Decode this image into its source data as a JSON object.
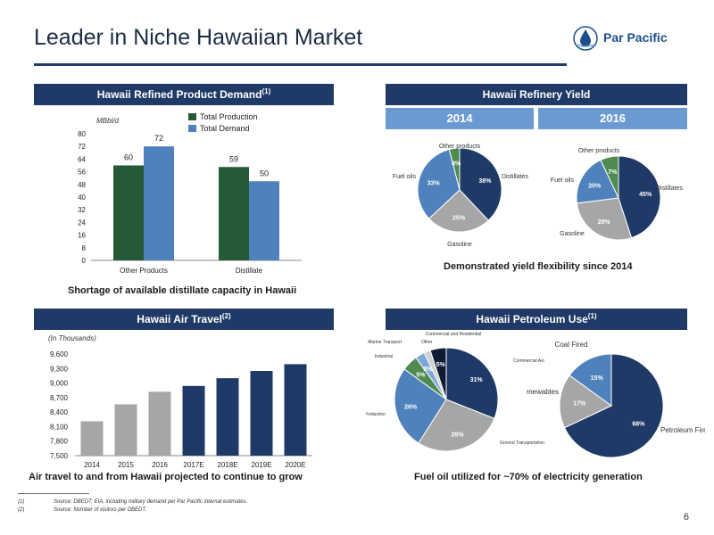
{
  "header": {
    "title": "Leader in Niche Hawaiian Market",
    "brand": "Par Pacific"
  },
  "colors": {
    "navy": "#1f3a66",
    "light_blue": "#6b9ad3",
    "dark_green": "#255a36",
    "mid_blue": "#4f81bd",
    "gray": "#a6a6a6",
    "green": "#4f8a4f"
  },
  "sections": {
    "demand_title": "Hawaii Refined Product Demand",
    "demand_sup": "(1)",
    "yield_title": "Hawaii Refinery Yield",
    "air_title": "Hawaii Air Travel",
    "air_sup": "(2)",
    "petro_title": "Hawaii Petroleum Use",
    "petro_sup": "(1)"
  },
  "yield_tabs": [
    "2014",
    "2016"
  ],
  "captions": {
    "demand": "Shortage of available distillate capacity in Hawaii",
    "yield": "Demonstrated yield flexibility since 2014",
    "air": "Air travel to and from Hawaii projected to continue to grow",
    "petro": "Fuel oil utilized for ~70% of electricity generation"
  },
  "footnotes": [
    {
      "num": "(1)",
      "text": "Source: DBEDT; EIA, including military demand per Par Pacific internal estimates."
    },
    {
      "num": "(2)",
      "text": "Source: Number of visitors per DBEDT."
    }
  ],
  "page_number": "6",
  "chart_data": [
    {
      "type": "bar",
      "unit_label": "MBbl/d",
      "categories": [
        "Other Products",
        "Distillate"
      ],
      "series": [
        {
          "name": "Total Production",
          "values": [
            60,
            59
          ],
          "color": "#255a36"
        },
        {
          "name": "Total Demand",
          "values": [
            72,
            50
          ],
          "color": "#4f81bd"
        }
      ],
      "data_labels": [
        [
          "60",
          "59"
        ],
        [
          "72",
          "50"
        ]
      ],
      "ylim": [
        0,
        80
      ],
      "yticks": [
        "0",
        "8",
        "16",
        "24",
        "32",
        "40",
        "48",
        "56",
        "64",
        "72",
        "80"
      ],
      "legend": "top-right"
    },
    {
      "type": "pie",
      "year": "2014",
      "slices": [
        {
          "label": "Distillates",
          "value": 38,
          "pct": "38%",
          "color": "#1f3a66"
        },
        {
          "label": "Gasoline",
          "value": 25,
          "pct": "25%",
          "color": "#a6a6a6"
        },
        {
          "label": "Fuel oils",
          "value": 33,
          "pct": "33%",
          "color": "#4f81bd"
        },
        {
          "label": "Other products",
          "value": 4,
          "pct": "4%",
          "color": "#4f8a4f"
        }
      ]
    },
    {
      "type": "pie",
      "year": "2016",
      "slices": [
        {
          "label": "Distillates",
          "value": 45,
          "pct": "45%",
          "color": "#1f3a66"
        },
        {
          "label": "Gasoline",
          "value": 28,
          "pct": "28%",
          "color": "#a6a6a6"
        },
        {
          "label": "Fuel oils",
          "value": 20,
          "pct": "20%",
          "color": "#4f81bd"
        },
        {
          "label": "Other products",
          "value": 7,
          "pct": "7%",
          "color": "#4f8a4f"
        }
      ]
    },
    {
      "type": "bar",
      "unit_label": "(In Thousands)",
      "categories": [
        "2014",
        "2015",
        "2016",
        "2017E",
        "2018E",
        "2019E",
        "2020E"
      ],
      "values": [
        8210,
        8560,
        8820,
        8940,
        9100,
        9250,
        9390
      ],
      "colors": [
        "#a6a6a6",
        "#a6a6a6",
        "#a6a6a6",
        "#1f3a66",
        "#1f3a66",
        "#1f3a66",
        "#1f3a66"
      ],
      "ylim": [
        7500,
        9600
      ],
      "yticks": [
        "7,500",
        "7,800",
        "8,100",
        "8,400",
        "8,700",
        "9,000",
        "9,300",
        "9,600"
      ]
    },
    {
      "type": "pie",
      "name": "Petroleum Use",
      "slices": [
        {
          "label": "Commercial Aviation",
          "value": 31,
          "pct": "31%",
          "color": "#1f3a66"
        },
        {
          "label": "Ground Transportation",
          "value": 28,
          "pct": "28%",
          "color": "#a6a6a6"
        },
        {
          "label": "Electricity Production",
          "value": 26,
          "pct": "26%",
          "color": "#4f81bd"
        },
        {
          "label": "Industrial",
          "value": 5,
          "pct": "5%",
          "color": "#4f8a4f"
        },
        {
          "label": "Marine Transport",
          "value": 3,
          "pct": "3%",
          "color": "#7fa7d8"
        },
        {
          "label": "Other",
          "value": 2,
          "pct": "",
          "color": "#d0d0d0"
        },
        {
          "label": "Commercial and Residential",
          "value": 5,
          "pct": "5%",
          "color": "#0f1d33"
        }
      ]
    },
    {
      "type": "pie",
      "name": "Electricity Generation",
      "slices": [
        {
          "label": "Petroleum Fired",
          "value": 68,
          "pct": "68%",
          "color": "#1f3a66"
        },
        {
          "label": "Renewables",
          "value": 17,
          "pct": "17%",
          "color": "#a6a6a6"
        },
        {
          "label": "Coal Fired",
          "value": 15,
          "pct": "15%",
          "color": "#4f81bd"
        }
      ]
    }
  ]
}
